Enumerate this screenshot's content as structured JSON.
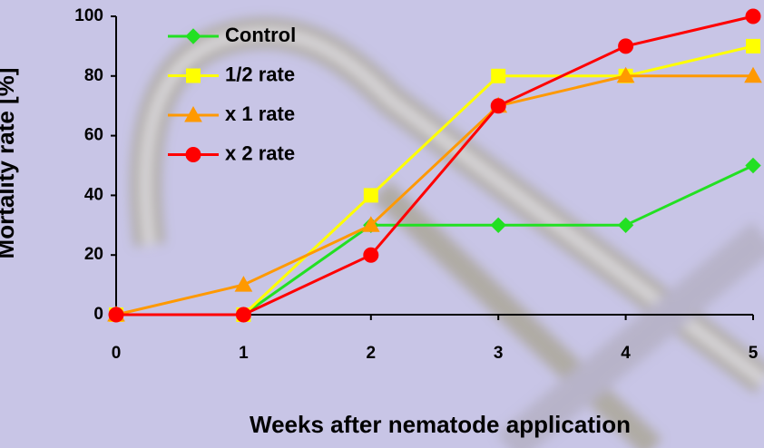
{
  "chart_data": {
    "type": "line",
    "x_label": "Weeks after nematode application",
    "y_label": "Mortality rate [%]",
    "x": [
      0,
      1,
      2,
      3,
      4,
      5
    ],
    "xlim": [
      0,
      5
    ],
    "xticks": [
      0,
      1,
      2,
      3,
      4,
      5
    ],
    "ylim": [
      0,
      100
    ],
    "yticks": [
      0,
      20,
      40,
      60,
      80,
      100
    ],
    "legend": "upper left",
    "series": [
      {
        "name": "Control",
        "color": "#22e022",
        "marker": "diamond",
        "values": [
          0,
          0,
          30,
          30,
          30,
          50
        ]
      },
      {
        "name": "1/2 rate",
        "color": "#ffff00",
        "marker": "square",
        "values": [
          0,
          0,
          40,
          80,
          80,
          90
        ]
      },
      {
        "name": "x 1 rate",
        "color": "#ff9900",
        "marker": "triangle",
        "values": [
          0,
          10,
          30,
          70,
          80,
          80
        ]
      },
      {
        "name": "x 2 rate",
        "color": "#ff0000",
        "marker": "circle",
        "values": [
          0,
          0,
          20,
          70,
          90,
          100
        ]
      }
    ]
  }
}
